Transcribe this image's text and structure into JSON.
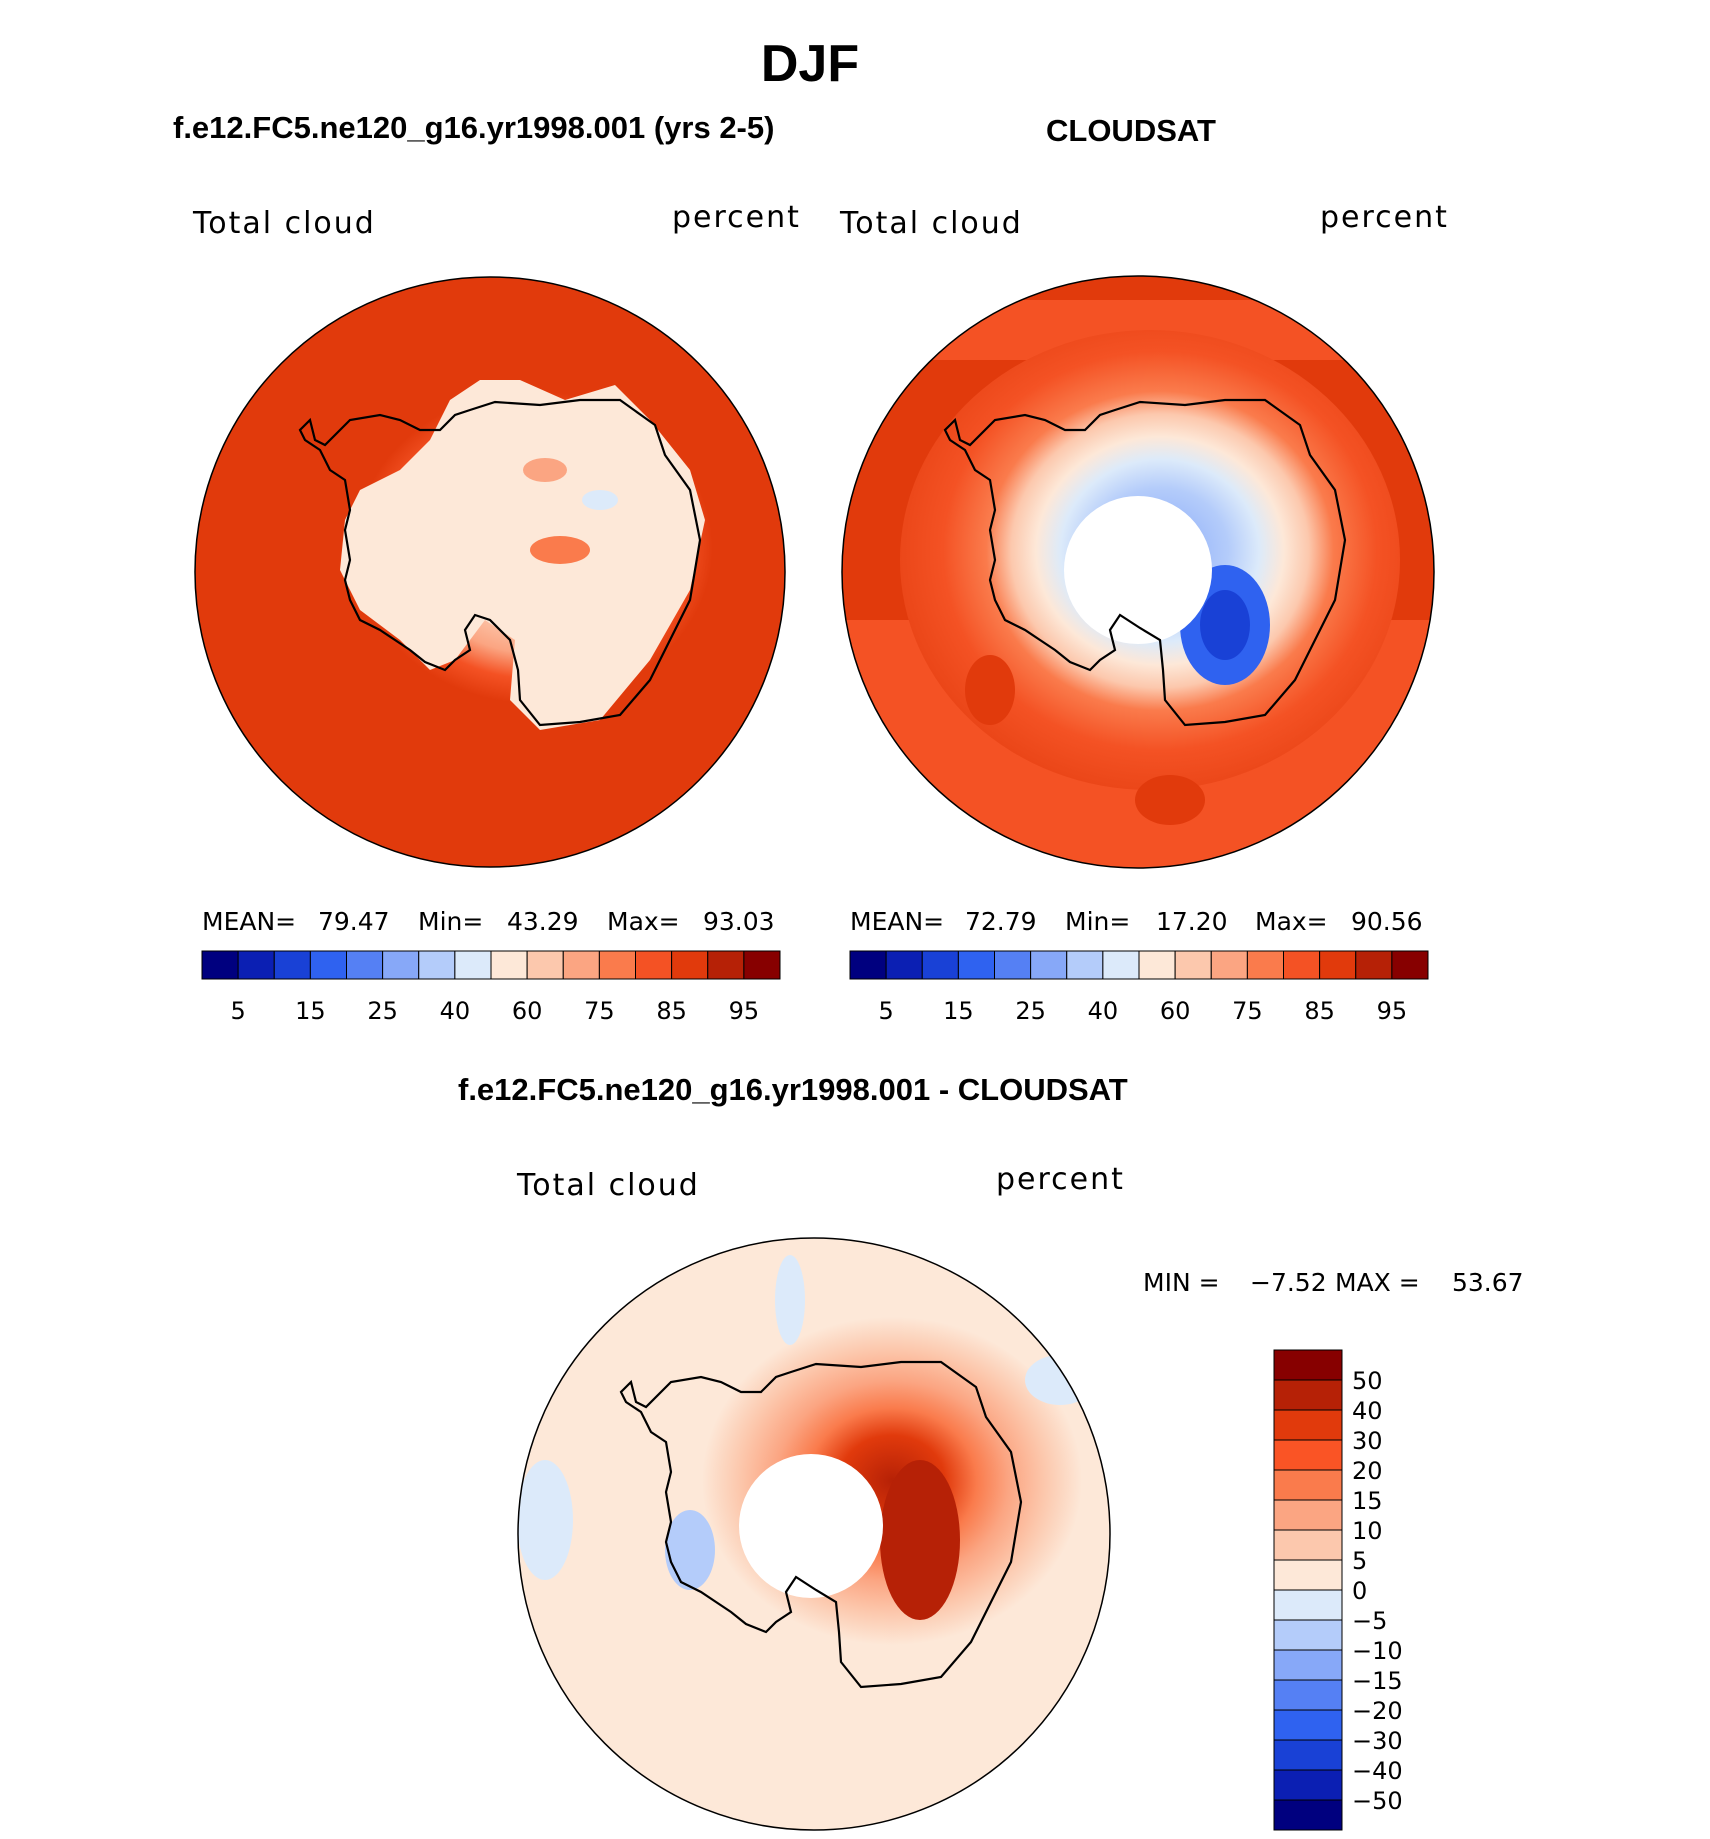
{
  "figure": {
    "title": "DJF",
    "colors": {
      "seq": [
        "#00007f",
        "#0b1fb3",
        "#1941d6",
        "#2f62f0",
        "#5580f4",
        "#87a8f8",
        "#b4ccfa",
        "#dceafa",
        "#fde8d8",
        "#fcc8ad",
        "#fba582",
        "#fa7b4c",
        "#f45224",
        "#e13a0c",
        "#b62106",
        "#870000"
      ],
      "diff": [
        "#870000",
        "#b62106",
        "#e13a0c",
        "#fa5425",
        "#fa7b4c",
        "#fba582",
        "#fcc8ad",
        "#fde8d8",
        "#dceafa",
        "#b4ccfa",
        "#87a8f8",
        "#5580f4",
        "#2f62f0",
        "#1941d6",
        "#0b1fb3",
        "#00007f"
      ]
    }
  },
  "chart_data": [
    {
      "type": "heatmap",
      "projection": "south-polar-stereographic",
      "title": "f.e12.FC5.ne120_g16.yr1998.001 (yrs 2-5)",
      "variable_label": "Total cloud",
      "units_label": "percent",
      "stats": {
        "mean_label": "MEAN=",
        "mean": "79.47",
        "min_label": "Min=",
        "min": "43.29",
        "max_label": "Max=",
        "max": "93.03"
      },
      "colorbar": {
        "orientation": "horizontal",
        "levels": [
          5,
          10,
          15,
          20,
          25,
          30,
          40,
          50,
          60,
          70,
          75,
          80,
          85,
          90,
          95
        ],
        "tick_labels": [
          "5",
          "15",
          "25",
          "40",
          "60",
          "75",
          "85",
          "95"
        ]
      }
    },
    {
      "type": "heatmap",
      "projection": "south-polar-stereographic",
      "title": "CLOUDSAT",
      "variable_label": "Total cloud",
      "units_label": "percent",
      "stats": {
        "mean_label": "MEAN=",
        "mean": "72.79",
        "min_label": "Min=",
        "min": "17.20",
        "max_label": "Max=",
        "max": "90.56"
      },
      "colorbar": {
        "orientation": "horizontal",
        "levels": [
          5,
          10,
          15,
          20,
          25,
          30,
          40,
          50,
          60,
          70,
          75,
          80,
          85,
          90,
          95
        ],
        "tick_labels": [
          "5",
          "15",
          "25",
          "40",
          "60",
          "75",
          "85",
          "95"
        ]
      }
    },
    {
      "type": "heatmap",
      "projection": "south-polar-stereographic",
      "title": "f.e12.FC5.ne120_g16.yr1998.001 - CLOUDSAT",
      "variable_label": "Total cloud",
      "units_label": "percent",
      "stats": {
        "min_label": "MIN =",
        "min": "−7.52",
        "max_label": "MAX =",
        "max": "53.67"
      },
      "colorbar": {
        "orientation": "vertical",
        "tick_labels": [
          "50",
          "40",
          "30",
          "20",
          "15",
          "10",
          "5",
          "0",
          "−5",
          "−10",
          "−15",
          "−20",
          "−30",
          "−40",
          "−50"
        ]
      }
    }
  ]
}
